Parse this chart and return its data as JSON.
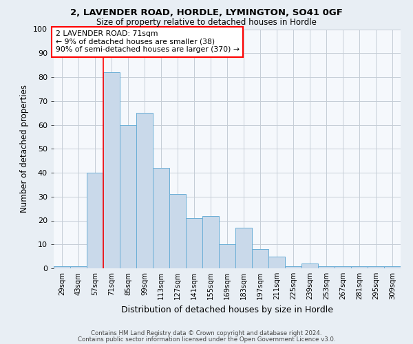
{
  "title1": "2, LAVENDER ROAD, HORDLE, LYMINGTON, SO41 0GF",
  "title2": "Size of property relative to detached houses in Hordle",
  "xlabel": "Distribution of detached houses by size in Hordle",
  "ylabel": "Number of detached properties",
  "categories": [
    "29sqm",
    "43sqm",
    "57sqm",
    "71sqm",
    "85sqm",
    "99sqm",
    "113sqm",
    "127sqm",
    "141sqm",
    "155sqm",
    "169sqm",
    "183sqm",
    "197sqm",
    "211sqm",
    "225sqm",
    "239sqm",
    "253sqm",
    "267sqm",
    "281sqm",
    "295sqm",
    "309sqm"
  ],
  "values": [
    1,
    1,
    40,
    82,
    60,
    65,
    42,
    31,
    21,
    22,
    10,
    17,
    8,
    5,
    1,
    2,
    1,
    1,
    1,
    1,
    1
  ],
  "bar_color": "#c9d9ea",
  "bar_edge_color": "#6aaed6",
  "red_line_index": 3,
  "annotation_line1": "2 LAVENDER ROAD: 71sqm",
  "annotation_line2": "← 9% of detached houses are smaller (38)",
  "annotation_line3": "90% of semi-detached houses are larger (370) →",
  "annotation_box_facecolor": "white",
  "annotation_box_edgecolor": "red",
  "ylim": [
    0,
    100
  ],
  "yticks": [
    0,
    10,
    20,
    30,
    40,
    50,
    60,
    70,
    80,
    90,
    100
  ],
  "footnote1": "Contains HM Land Registry data © Crown copyright and database right 2024.",
  "footnote2": "Contains public sector information licensed under the Open Government Licence v3.0.",
  "bg_color": "#e8eef4",
  "plot_bg_color": "#f5f8fc",
  "grid_color": "#c5cdd6"
}
